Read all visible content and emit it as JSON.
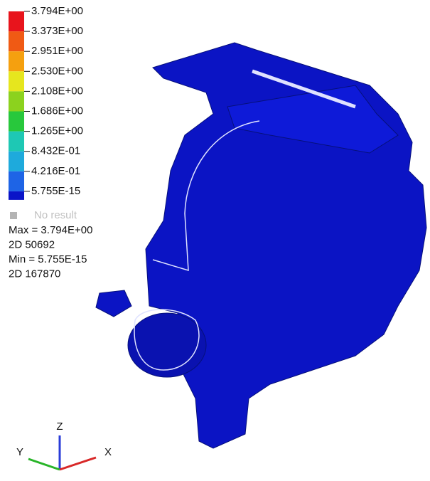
{
  "legend": {
    "labels": [
      "3.794E+00",
      "3.373E+00",
      "2.951E+00",
      "2.530E+00",
      "2.108E+00",
      "1.686E+00",
      "1.265E+00",
      "8.432E-01",
      "4.216E-01",
      "5.755E-15"
    ],
    "band_colors": [
      "#e8141c",
      "#f05a14",
      "#f5a00f",
      "#e6e61e",
      "#8cd21e",
      "#28c83c",
      "#1ec8b4",
      "#1eaadc",
      "#1e64e6",
      "#0a14c8"
    ],
    "no_result": "No result"
  },
  "summary": [
    "Max = 3.794E+00",
    "2D 50692",
    "Min = 5.755E-15",
    "2D 167870"
  ],
  "triad": {
    "z": "Z",
    "y": "Y",
    "x": "X"
  }
}
